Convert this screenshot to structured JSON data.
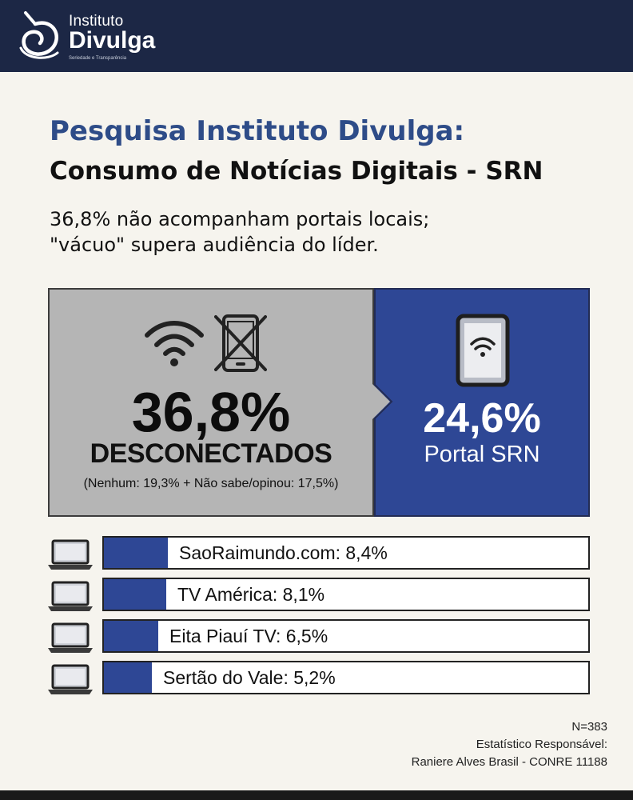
{
  "brand": {
    "line1": "Instituto",
    "line2": "Divulga",
    "tagline": "Seriedade e Transparência",
    "header_color": "#1c2745"
  },
  "title": {
    "line1": "Pesquisa Instituto Divulga:",
    "line2": "Consumo de Notícias Digitais - SRN"
  },
  "subtitle": {
    "line1": "36,8% não acompanham portais locais;",
    "line2": "\"vácuo\" supera audiência do líder."
  },
  "highlight": {
    "disconnected": {
      "value": "36,8%",
      "label": "DESCONECTADOS",
      "note": "(Nenhum: 19,3% + Não sabe/opinou: 17,5%)",
      "icons": [
        "wifi-icon",
        "phone-crossed-icon"
      ]
    },
    "leader": {
      "value": "24,6%",
      "label": "Portal SRN",
      "icon": "tablet-wifi-icon"
    }
  },
  "chart_data": {
    "type": "bar",
    "categories": [
      "SaoRaimundo.com",
      "TV América",
      "Eita Piauí TV",
      "Sertão do Vale"
    ],
    "values": [
      8.4,
      8.1,
      6.5,
      5.2
    ],
    "labels": [
      "SaoRaimundo.com: 8,4%",
      "TV América: 8,1%",
      "Eita Piauí TV: 6,5%",
      "Sertão do Vale: 5,2%"
    ],
    "bar_color": "#2e4795",
    "icon": "laptop-icon"
  },
  "footer": {
    "sample": "N=383",
    "credit_line1": "Estatístico Responsável:",
    "credit_line2": "Raniere Alves Brasil - CONRE 11188"
  },
  "colors": {
    "accent_blue": "#2e4795",
    "title_blue": "#2e4c88",
    "panel_grey": "#b5b5b5",
    "background": "#f6f4ee"
  }
}
